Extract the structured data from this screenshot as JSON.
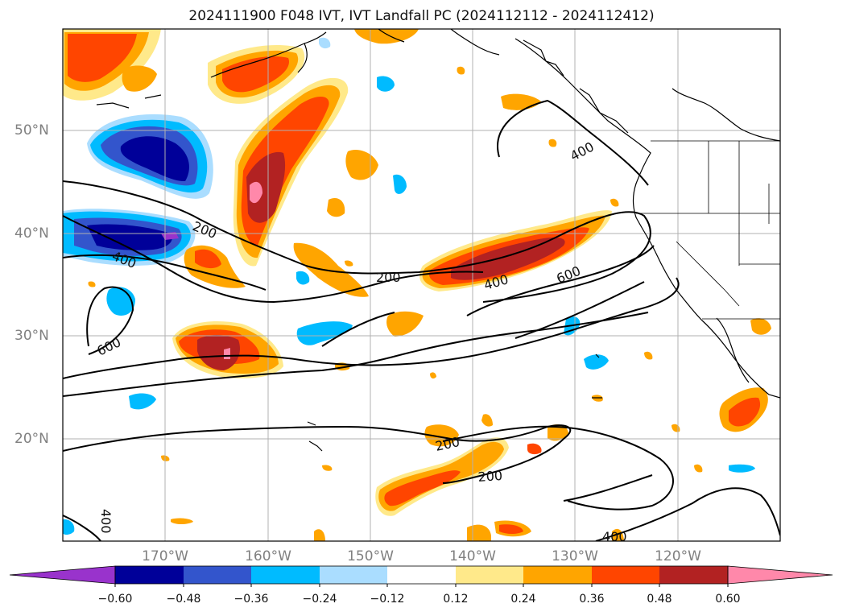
{
  "title": "2024111900 F048 IVT, IVT Landfall PC (2024112112 - 2024112412)",
  "lat_labels": [
    "50°N",
    "40°N",
    "30°N",
    "20°N"
  ],
  "lon_labels": [
    "170°W",
    "160°W",
    "150°W",
    "140°W",
    "130°W",
    "120°W"
  ],
  "contour_labels": [
    "200",
    "200",
    "200",
    "200",
    "400",
    "400",
    "400",
    "400",
    "400",
    "600",
    "600"
  ],
  "colorbar": {
    "tick_labels": [
      "−0.60",
      "−0.48",
      "−0.36",
      "−0.24",
      "−0.12",
      "0.12",
      "0.24",
      "0.36",
      "0.48",
      "0.60"
    ],
    "colors": [
      "#9933cc",
      "#000099",
      "#3355cc",
      "#00bbff",
      "#aaddff",
      "#ffffff",
      "#ffe98a",
      "#ffa500",
      "#ff4500",
      "#b22222",
      "#ff88aa"
    ],
    "extend": "both"
  },
  "legend_colors": {
    "neg_light": "#aaddff",
    "neg_mid": "#00bbff",
    "neg_blue": "#3355cc",
    "neg_dark": "#000099",
    "neg_extreme": "#9933cc",
    "pos_light": "#ffe98a",
    "pos_mid": "#ffa500",
    "pos_orange": "#ff4500",
    "pos_red": "#b22222",
    "pos_pink": "#ff88aa"
  }
}
